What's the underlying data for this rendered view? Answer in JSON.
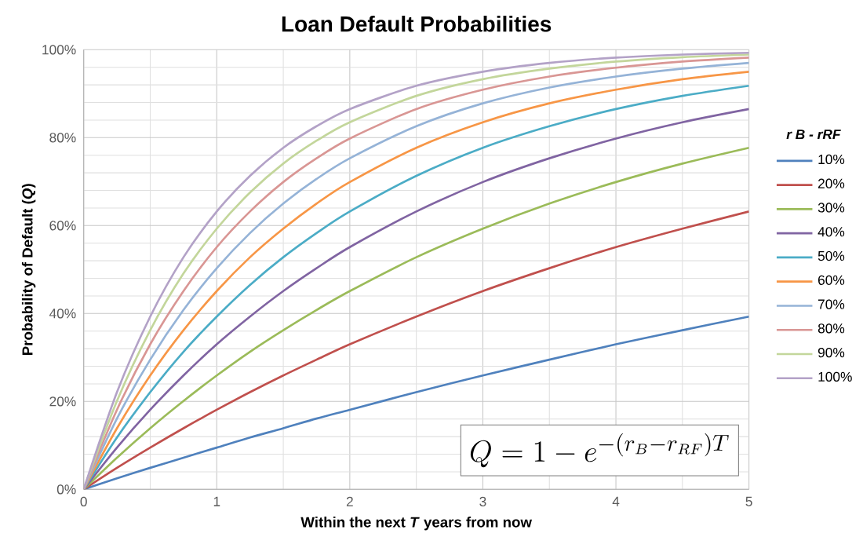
{
  "chart_data": {
    "type": "line",
    "title": "Loan Default Probabilities",
    "xlabel": "Within the next *T* years from now",
    "ylabel": "Probability of Default (*Q*)",
    "legend_title": "r B - rRF",
    "x": [
      0,
      0.25,
      0.5,
      0.75,
      1,
      1.25,
      1.5,
      1.75,
      2,
      2.5,
      3,
      3.5,
      4,
      4.5,
      5
    ],
    "series": [
      {
        "name": "10%",
        "color": "#4f81bd",
        "values": [
          0,
          2.5,
          4.9,
          7.2,
          9.5,
          11.8,
          13.9,
          16.1,
          18.1,
          22.1,
          25.9,
          29.5,
          33.0,
          36.2,
          39.3
        ]
      },
      {
        "name": "20%",
        "color": "#c0504d",
        "values": [
          0,
          4.9,
          9.5,
          13.9,
          18.1,
          22.1,
          25.9,
          29.5,
          33.0,
          39.3,
          45.1,
          50.3,
          55.1,
          59.3,
          63.2
        ]
      },
      {
        "name": "30%",
        "color": "#9bbb59",
        "values": [
          0,
          7.2,
          13.9,
          20.1,
          25.9,
          31.3,
          36.2,
          40.8,
          45.1,
          52.8,
          59.3,
          65.0,
          69.9,
          74.1,
          77.7
        ]
      },
      {
        "name": "40%",
        "color": "#8064a2",
        "values": [
          0,
          9.5,
          18.1,
          25.9,
          33.0,
          39.3,
          45.1,
          50.3,
          55.1,
          63.2,
          69.9,
          75.3,
          79.8,
          83.5,
          86.5
        ]
      },
      {
        "name": "50%",
        "color": "#4bacc6",
        "values": [
          0,
          11.8,
          22.1,
          31.3,
          39.3,
          46.5,
          52.8,
          58.3,
          63.2,
          71.3,
          77.7,
          82.6,
          86.5,
          89.5,
          91.8
        ]
      },
      {
        "name": "60%",
        "color": "#f79646",
        "values": [
          0,
          13.9,
          25.9,
          36.2,
          45.1,
          52.8,
          59.3,
          65.0,
          69.9,
          77.7,
          83.5,
          87.8,
          90.9,
          93.3,
          95.0
        ]
      },
      {
        "name": "70%",
        "color": "#95b3d7",
        "values": [
          0,
          16.1,
          29.5,
          40.8,
          50.3,
          58.3,
          65.0,
          70.6,
          75.3,
          82.6,
          87.8,
          91.4,
          93.9,
          95.7,
          97.0
        ]
      },
      {
        "name": "80%",
        "color": "#d99694",
        "values": [
          0,
          18.1,
          33.0,
          45.1,
          55.1,
          63.2,
          69.9,
          75.3,
          79.8,
          86.5,
          90.9,
          93.9,
          95.9,
          97.3,
          98.2
        ]
      },
      {
        "name": "90%",
        "color": "#c3d69b",
        "values": [
          0,
          20.1,
          36.2,
          49.1,
          59.3,
          67.5,
          74.1,
          79.3,
          83.5,
          89.5,
          93.3,
          95.7,
          97.3,
          98.3,
          98.9
        ]
      },
      {
        "name": "100%",
        "color": "#b3a2c7",
        "values": [
          0,
          22.1,
          39.3,
          52.8,
          63.2,
          71.3,
          77.7,
          82.6,
          86.5,
          91.8,
          95.0,
          97.0,
          98.2,
          98.9,
          99.3
        ]
      }
    ],
    "xlim": [
      0,
      5
    ],
    "xticks": [
      0,
      1,
      2,
      3,
      4,
      5
    ],
    "ylim": [
      0,
      100
    ],
    "yticks": [
      {
        "value": 0,
        "label": "0%"
      },
      {
        "value": 20,
        "label": "20%"
      },
      {
        "value": 40,
        "label": "40%"
      },
      {
        "value": 60,
        "label": "60%"
      },
      {
        "value": 80,
        "label": "80%"
      },
      {
        "value": 100,
        "label": "100%"
      }
    ],
    "grid": true,
    "legend": "right",
    "line_style": "solid",
    "marker": "none",
    "annotations": [
      "Q = 1 - e^{-(r_B - r_{RF})T}"
    ]
  }
}
